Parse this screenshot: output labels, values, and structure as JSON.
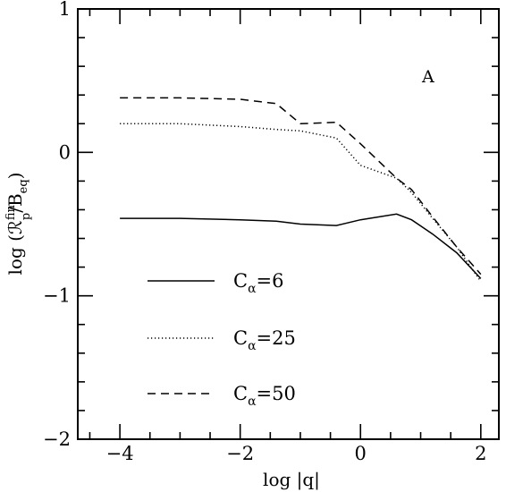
{
  "chart_data": {
    "type": "line",
    "title": "",
    "panel_label": "A",
    "xlabel": "log |q|",
    "ylabel": "log (ℛ",
    "ylabel_sup": "fin",
    "ylabel_sub": "p",
    "ylabel_tail": "/B",
    "ylabel_tail_sub": "eq",
    "ylabel_close": ")",
    "xlim": [
      -4.7,
      2.3
    ],
    "ylim": [
      -2,
      1
    ],
    "log_scale": false,
    "grid": false,
    "legend_position": "bottom-left",
    "x_ticks": [
      -4,
      -2,
      0,
      2
    ],
    "x_tick_labels": [
      "−4",
      "−2",
      "0",
      "2"
    ],
    "y_ticks": [
      -2,
      -1,
      0,
      1
    ],
    "y_tick_labels": [
      "−2",
      "−1",
      "0",
      "1"
    ],
    "series": [
      {
        "name": "Cα=6",
        "legend_prefix": "C",
        "legend_sub": "α",
        "legend_suffix": "=6",
        "dash": "solid",
        "x": [
          -4.0,
          -3.0,
          -2.0,
          -1.4,
          -1.0,
          -0.4,
          0.0,
          0.6,
          0.85,
          1.2,
          1.6,
          2.0
        ],
        "y": [
          -0.46,
          -0.46,
          -0.47,
          -0.48,
          -0.5,
          -0.51,
          -0.47,
          -0.43,
          -0.47,
          -0.57,
          -0.7,
          -0.88
        ]
      },
      {
        "name": "Cα=25",
        "legend_prefix": "C",
        "legend_sub": "α",
        "legend_suffix": "=25",
        "dash": "dotted",
        "x": [
          -4.0,
          -3.0,
          -2.0,
          -1.4,
          -1.0,
          -0.4,
          0.0,
          0.6,
          0.85,
          1.2,
          1.6,
          2.0
        ],
        "y": [
          0.2,
          0.2,
          0.18,
          0.16,
          0.15,
          0.1,
          -0.09,
          -0.18,
          -0.28,
          -0.46,
          -0.66,
          -0.9
        ]
      },
      {
        "name": "Cα=50",
        "legend_prefix": "C",
        "legend_sub": "α",
        "legend_suffix": "=50",
        "dash": "dashed",
        "x": [
          -4.0,
          -3.0,
          -2.0,
          -1.4,
          -1.0,
          -0.4,
          0.0,
          0.6,
          0.85,
          1.2,
          1.6,
          2.0
        ],
        "y": [
          0.38,
          0.38,
          0.37,
          0.34,
          0.2,
          0.21,
          0.06,
          -0.18,
          -0.26,
          -0.45,
          -0.66,
          -0.85
        ]
      }
    ]
  }
}
